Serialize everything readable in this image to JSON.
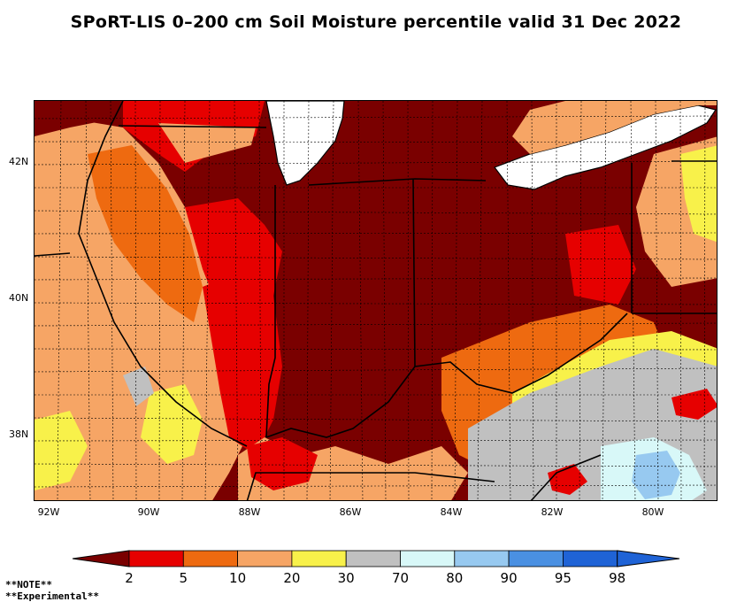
{
  "title": "SPoRT-LIS 0–200 cm Soil Moisture percentile valid 31 Dec 2022",
  "lat_labels": [
    "42N",
    "40N",
    "38N"
  ],
  "lon_labels": [
    "92W",
    "90W",
    "88W",
    "86W",
    "84W",
    "82W",
    "80W"
  ],
  "colors": {
    "c_lt2": "#7a0000",
    "c_2_5": "#e60000",
    "c_5_10": "#ee6a10",
    "c_10_20": "#f6a565",
    "c_20_30": "#f8f14a",
    "c_30_70": "#c0c0c0",
    "c_70_80": "#d8f8f8",
    "c_80_90": "#97c9f0",
    "c_90_95": "#4a90e2",
    "c_95_98": "#1f63d6"
  },
  "legend": {
    "labels": [
      "2",
      "5",
      "10",
      "20",
      "30",
      "70",
      "80",
      "90",
      "95",
      "98"
    ],
    "colors": [
      "#e60000",
      "#ee6a10",
      "#f6a565",
      "#f8f14a",
      "#c0c0c0",
      "#d8f8f8",
      "#97c9f0",
      "#4a90e2",
      "#1f63d6"
    ],
    "left_color": "#7a0000",
    "right_color": "#1f63d6"
  },
  "notes": [
    "**NOTE**",
    "**Experimental**"
  ]
}
